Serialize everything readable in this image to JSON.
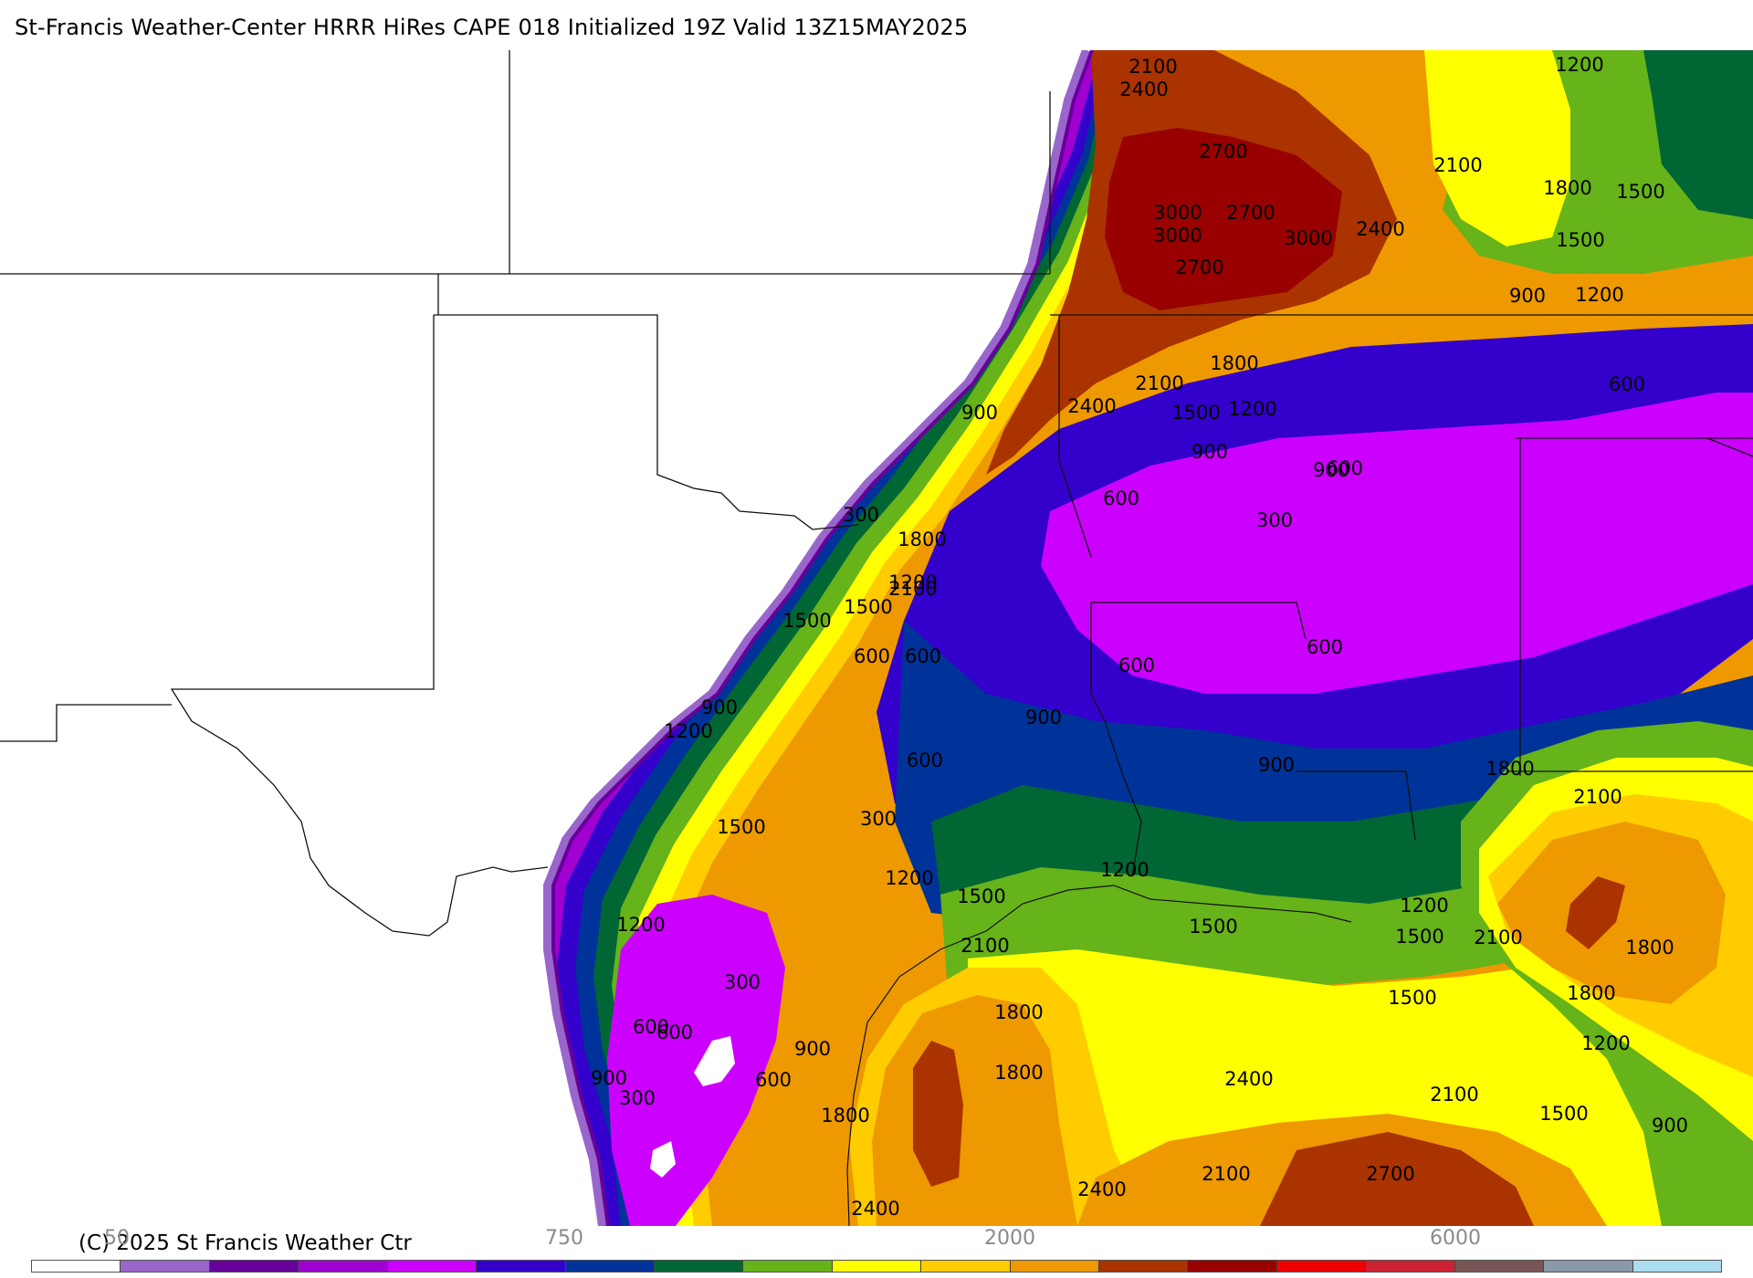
{
  "header": {
    "title": "St-Francis Weather-Center HRRR HiRes CAPE  018 Initialized  19Z Valid 13Z15MAY2025"
  },
  "footer": {
    "copyright": "(C) 2025 St Francis Weather Ctr"
  },
  "colorbar": {
    "labels": [
      "50",
      "750",
      "2000",
      "6000"
    ],
    "colors": [
      "#ffffff",
      "#9966cc",
      "#660099",
      "#a000d0",
      "#cc00ff",
      "#3300cc",
      "#003399",
      "#006633",
      "#66b31a",
      "#ffff00",
      "#ffcc00",
      "#ee9900",
      "#aa3300",
      "#990000",
      "#ee0000",
      "#cc2233",
      "#775555",
      "#8899aa",
      "#aaddee"
    ]
  },
  "map": {
    "contour_labels": [
      "2100",
      "2400",
      "2700",
      "3000",
      "3000",
      "2700",
      "3000",
      "2400",
      "2700",
      "2100",
      "1200",
      "1800",
      "1500",
      "1500",
      "900",
      "1200",
      "600",
      "1800",
      "2100",
      "2400",
      "1500",
      "1200",
      "900",
      "900",
      "600",
      "600",
      "300",
      "300",
      "1800",
      "1200",
      "2100",
      "1500",
      "1500",
      "600",
      "600",
      "900",
      "600",
      "900",
      "1200",
      "600",
      "900",
      "600",
      "900",
      "1800",
      "2100",
      "300",
      "1500",
      "1200",
      "600",
      "1200",
      "1500",
      "2100",
      "1200",
      "1500",
      "1200",
      "1500",
      "2100",
      "1800",
      "300",
      "600",
      "900",
      "1800",
      "1500",
      "1800",
      "1800",
      "2400",
      "2100",
      "1500",
      "1200",
      "300",
      "900",
      "600",
      "1800",
      "2400",
      "2100",
      "2400",
      "2700",
      "900"
    ]
  }
}
